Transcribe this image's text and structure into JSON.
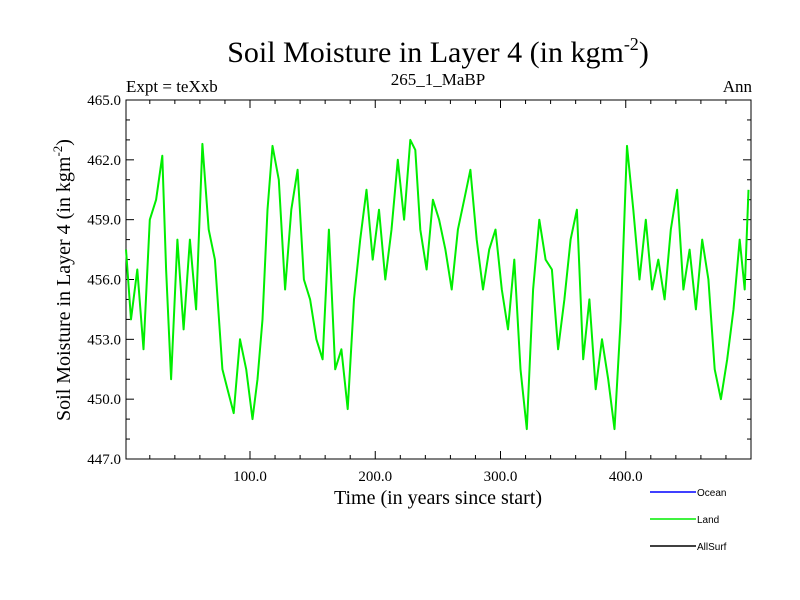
{
  "chart_data": {
    "type": "line",
    "title_main": "Soil Moisture in Layer 4 (in kgm",
    "title_exp": "-2",
    "title_close": ")",
    "subtitle_left": "Expt = teXxb",
    "subtitle_center": "265_1_MaBP",
    "subtitle_right": "Ann",
    "xlabel": "Time (in years since start)",
    "ylabel_main": "Soil Moisture in Layer 4 (in kgm",
    "ylabel_exp": "-2",
    "ylabel_close": ")",
    "xlim": [
      1,
      500
    ],
    "ylim": [
      447.0,
      465.0
    ],
    "xticks": [
      100,
      200,
      300,
      400
    ],
    "xtick_labels": [
      "100.0",
      "200.0",
      "300.0",
      "400.0"
    ],
    "yticks": [
      447,
      450,
      453,
      456,
      459,
      462,
      465
    ],
    "ytick_labels": [
      "447.0",
      "450.0",
      "453.0",
      "456.0",
      "459.0",
      "462.0",
      "465.0"
    ],
    "legend": [
      {
        "name": "Ocean",
        "color": "#0000ff"
      },
      {
        "name": "Land",
        "color": "#00ee00"
      },
      {
        "name": "AllSurf",
        "color": "#000000"
      }
    ],
    "series": [
      {
        "name": "Land",
        "color": "#00ee00",
        "x": [
          1,
          5,
          10,
          15,
          20,
          25,
          30,
          33,
          37,
          42,
          47,
          52,
          57,
          62,
          67,
          72,
          78,
          82,
          87,
          92,
          97,
          102,
          106,
          110,
          114,
          118,
          123,
          128,
          133,
          138,
          143,
          148,
          153,
          158,
          163,
          168,
          173,
          178,
          183,
          188,
          193,
          198,
          203,
          208,
          213,
          218,
          223,
          228,
          232,
          236,
          241,
          246,
          251,
          256,
          261,
          266,
          271,
          276,
          281,
          286,
          291,
          296,
          301,
          306,
          311,
          316,
          321,
          326,
          331,
          336,
          341,
          346,
          351,
          356,
          361,
          366,
          371,
          376,
          381,
          386,
          391,
          396,
          401,
          406,
          411,
          416,
          421,
          426,
          431,
          436,
          441,
          446,
          451,
          456,
          461,
          466,
          471,
          476,
          481,
          486,
          491,
          495,
          498
        ],
        "values": [
          457.5,
          454.0,
          456.5,
          452.5,
          459.0,
          460.0,
          462.2,
          456.5,
          451.0,
          458.0,
          453.5,
          458.0,
          454.5,
          462.8,
          458.5,
          457.0,
          451.5,
          450.5,
          449.3,
          453.0,
          451.5,
          449.0,
          451.0,
          454.0,
          459.5,
          462.7,
          461.0,
          455.5,
          459.5,
          461.5,
          456.0,
          455.0,
          453.0,
          452.0,
          458.5,
          451.5,
          452.5,
          449.5,
          455.0,
          458.0,
          460.5,
          457.0,
          459.5,
          456.0,
          458.5,
          462.0,
          459.0,
          463.0,
          462.5,
          458.5,
          456.5,
          460.0,
          459.0,
          457.5,
          455.5,
          458.5,
          460.0,
          461.5,
          458.0,
          455.5,
          457.5,
          458.5,
          455.5,
          453.5,
          457.0,
          451.5,
          448.5,
          455.5,
          459.0,
          457.0,
          456.5,
          452.5,
          455.0,
          458.0,
          459.5,
          452.0,
          455.0,
          450.5,
          453.0,
          451.0,
          448.5,
          454.0,
          462.7,
          459.5,
          456.0,
          459.0,
          455.5,
          457.0,
          455.0,
          458.5,
          460.5,
          455.5,
          457.5,
          454.5,
          458.0,
          456.0,
          451.5,
          450.0,
          452.0,
          454.5,
          458.0,
          455.5,
          460.5
        ]
      }
    ]
  }
}
